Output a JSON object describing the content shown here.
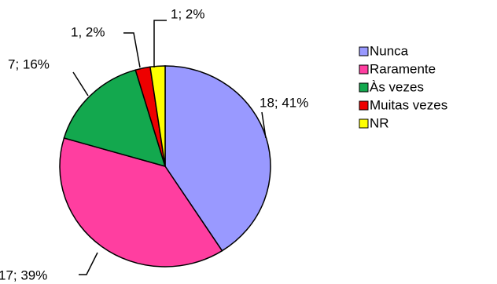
{
  "chart_data": {
    "type": "pie",
    "categories": [
      "Nunca",
      "Raramente",
      "Às vezes",
      "Muitas vezes",
      "NR"
    ],
    "values": [
      18,
      17,
      7,
      1,
      1
    ],
    "value_labels": [
      "18; 41%",
      "17; 39%",
      "7; 16%",
      "1, 2%",
      "1; 2%"
    ],
    "colors": [
      "#9999ff",
      "#ff3ea0",
      "#13a84e",
      "#ee0000",
      "#ffff00"
    ],
    "legend": "right"
  }
}
